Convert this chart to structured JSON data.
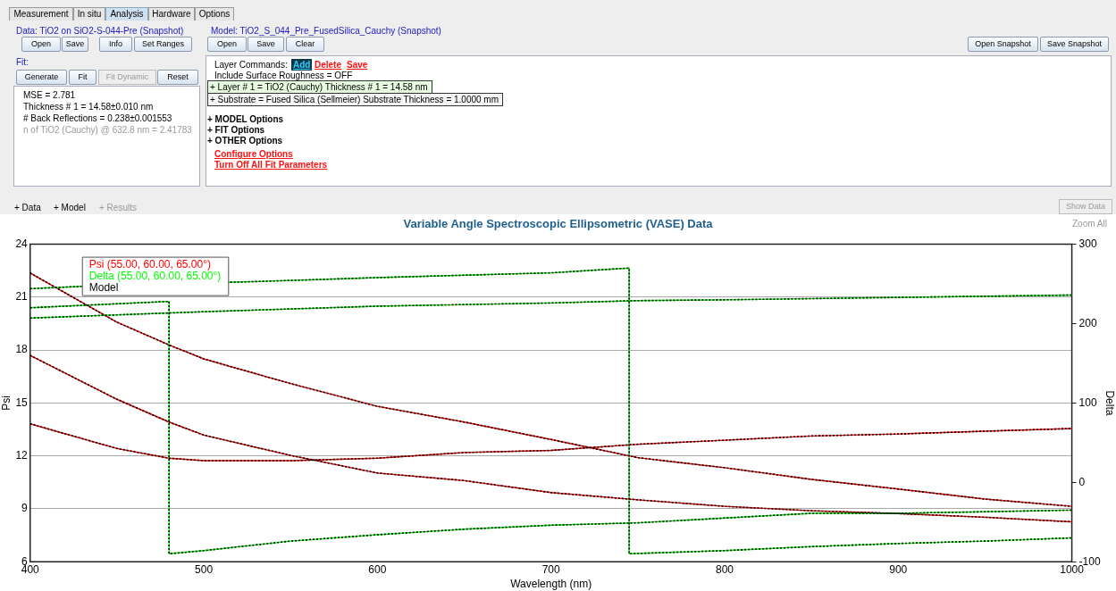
{
  "chart_data": [
    {
      "type": "other",
      "annotations": [
        "Measurement",
        "In situ",
        "Analysis",
        "Hardware",
        "Options",
        "Data: TiO2 on SiO2-S-044-Pre (Snapshot)",
        "Open",
        "Save",
        "Info",
        "Set Ranges",
        "Fit:",
        "Generate",
        "Fit",
        "Fit Dynamic",
        "Reset",
        "MSE = 2.781",
        "Thickness # 1 = 14.58±0.010 nm",
        "# Back Reflections = 0.238±0.001553",
        "n of TiO2 (Cauchy) @ 632.8 nm = 2.41783",
        "Model:  TiO2_S_044_Pre_FusedSilica_Cauchy (Snapshot)",
        "Open",
        "Save",
        "Clear",
        "Open Snapshot",
        "Save Snapshot",
        "Layer Commands:",
        "Add",
        "Delete",
        "Save",
        "Include Surface Roughness = OFF",
        "+ Layer # 1 = TiO2 (Cauchy)  Thickness # 1 = 14.58 nm",
        "+ Substrate = Fused Silica (Sellmeier)  Substrate Thickness = 1.0000 mm",
        "+ MODEL Options",
        "+ FIT Options",
        "+ OTHER Options",
        "Configure Options",
        "Turn Off All Fit Parameters",
        "+ Data",
        "+ Model",
        "+ Results",
        "Show Data",
        "Zoom All"
      ]
    },
    {
      "type": "line",
      "title": "Variable Angle Spectroscopic Ellipsometric (VASE) Data",
      "xlabel": "Wavelength (nm)",
      "ylabel": "Psi",
      "y2label": "Delta",
      "xlim": [
        400,
        1000
      ],
      "xticks": [
        400,
        500,
        600,
        700,
        800,
        900,
        1000
      ],
      "ylim": [
        6,
        24
      ],
      "yticks": [
        6,
        9,
        12,
        15,
        18,
        21,
        24
      ],
      "y2lim": [
        -100,
        300
      ],
      "y2ticks": [
        -100,
        0,
        100,
        200,
        300
      ],
      "grid": "y",
      "legend": "top left",
      "marker": "none",
      "line_style": "solid",
      "series": [
        {
          "name": "Psi (55.00, 60.00, 65.00°)",
          "color": "#ff0000",
          "x": [
            400,
            450,
            480,
            500,
            550,
            600,
            650,
            700,
            750,
            800,
            850,
            900,
            950,
            1000
          ],
          "values": [
            22.37,
            19.58,
            18.29,
            17.5,
            16.1,
            14.81,
            13.92,
            12.93,
            11.9,
            11.33,
            10.67,
            10.12,
            9.55,
            9.14
          ]
        },
        {
          "color": "#ff0000",
          "x": [
            400,
            450,
            480,
            500,
            550,
            600,
            650,
            700,
            750,
            800,
            850,
            900,
            950,
            1000
          ],
          "values": [
            17.7,
            15.21,
            13.92,
            13.18,
            12.03,
            11.03,
            10.6,
            9.92,
            9.51,
            9.14,
            8.89,
            8.73,
            8.52,
            8.26
          ]
        },
        {
          "color": "#ff0000",
          "x": [
            400,
            450,
            480,
            500,
            550,
            600,
            650,
            700,
            750,
            800,
            850,
            900,
            950,
            1000
          ],
          "values": [
            13.82,
            12.42,
            11.87,
            11.73,
            11.73,
            11.87,
            12.19,
            12.31,
            12.66,
            12.89,
            13.13,
            13.24,
            13.4,
            13.55
          ]
        },
        {
          "name": "Delta (55.00, 60.00, 65.00°)",
          "color": "#00ff00",
          "axis": "y2",
          "x": [
            400,
            430,
            530,
            600,
            650,
            700,
            745,
            745,
            800,
            850,
            900,
            950,
            1000
          ],
          "values": [
            244,
            247,
            253,
            258,
            261,
            264,
            270,
            -90,
            -86,
            -81,
            -77,
            -74,
            -70
          ]
        },
        {
          "color": "#00ff00",
          "axis": "y2",
          "x": [
            400,
            480,
            480,
            500,
            550,
            600,
            650,
            700,
            750,
            800,
            850,
            900,
            950,
            1000
          ],
          "values": [
            220,
            228,
            -90,
            -86,
            -74,
            -66,
            -59,
            -54,
            -51,
            -45,
            -39,
            -39,
            -37,
            -35
          ]
        },
        {
          "color": "#00ff00",
          "axis": "y2",
          "x": [
            400,
            500,
            600,
            700,
            750,
            800,
            900,
            1000
          ],
          "values": [
            207,
            215,
            222,
            226,
            229,
            230,
            233,
            236
          ]
        },
        {
          "name": "Model",
          "color": "#000000",
          "line_style": "dotted",
          "x": [
            400,
            450,
            480,
            500,
            550,
            600,
            650,
            700,
            750,
            800,
            850,
            900,
            950,
            1000
          ],
          "values": [
            22.37,
            19.58,
            18.29,
            17.5,
            16.1,
            14.81,
            13.92,
            12.93,
            11.9,
            11.33,
            10.67,
            10.12,
            9.55,
            9.14
          ]
        },
        {
          "color": "#000000",
          "line_style": "dotted",
          "x": [
            400,
            450,
            480,
            500,
            550,
            600,
            650,
            700,
            750,
            800,
            850,
            900,
            950,
            1000
          ],
          "values": [
            17.7,
            15.21,
            13.92,
            13.18,
            12.03,
            11.03,
            10.6,
            9.92,
            9.51,
            9.14,
            8.89,
            8.73,
            8.52,
            8.26
          ]
        },
        {
          "color": "#000000",
          "line_style": "dotted",
          "x": [
            400,
            450,
            480,
            500,
            550,
            600,
            650,
            700,
            750,
            800,
            850,
            900,
            950,
            1000
          ],
          "values": [
            13.82,
            12.42,
            11.87,
            11.73,
            11.73,
            11.87,
            12.19,
            12.31,
            12.66,
            12.89,
            13.13,
            13.24,
            13.4,
            13.55
          ]
        },
        {
          "color": "#000000",
          "line_style": "dotted",
          "axis": "y2",
          "x": [
            400,
            430,
            530,
            600,
            650,
            700,
            745,
            745,
            800,
            850,
            900,
            950,
            1000
          ],
          "values": [
            244,
            247,
            253,
            258,
            261,
            264,
            270,
            -90,
            -86,
            -81,
            -77,
            -74,
            -70
          ]
        },
        {
          "color": "#000000",
          "line_style": "dotted",
          "axis": "y2",
          "x": [
            400,
            480,
            480,
            500,
            550,
            600,
            650,
            700,
            750,
            800,
            850,
            900,
            950,
            1000
          ],
          "values": [
            220,
            228,
            -90,
            -86,
            -74,
            -66,
            -59,
            -54,
            -51,
            -45,
            -39,
            -39,
            -37,
            -35
          ]
        },
        {
          "color": "#000000",
          "line_style": "dotted",
          "axis": "y2",
          "x": [
            400,
            500,
            600,
            700,
            750,
            800,
            900,
            1000
          ],
          "values": [
            207,
            215,
            222,
            226,
            229,
            230,
            233,
            236
          ]
        }
      ]
    }
  ]
}
